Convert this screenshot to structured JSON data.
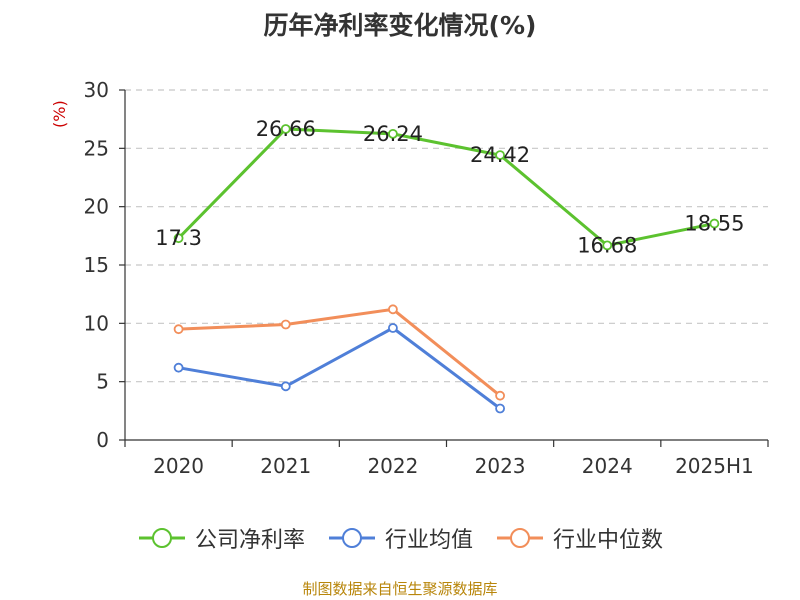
{
  "source": "制图数据来自恒生聚源数据库",
  "chart_data": {
    "type": "line",
    "title": "历年净利率变化情况(%)",
    "ylabel": "(%)",
    "categories": [
      "2020",
      "2021",
      "2022",
      "2023",
      "2024",
      "2025H1"
    ],
    "ylim": [
      0,
      30
    ],
    "yticks": [
      0,
      5,
      10,
      15,
      20,
      25,
      30
    ],
    "grid": true,
    "legend_position": "bottom",
    "series": [
      {
        "name": "公司净利率",
        "color": "#5cc22f",
        "labels": true,
        "values": [
          17.3,
          26.66,
          26.24,
          24.42,
          16.68,
          18.55
        ]
      },
      {
        "name": "行业均值",
        "color": "#4f7fd8",
        "labels": false,
        "values": [
          6.2,
          4.6,
          9.6,
          2.7,
          null,
          null
        ]
      },
      {
        "name": "行业中位数",
        "color": "#f28e5a",
        "labels": false,
        "values": [
          9.5,
          9.9,
          11.2,
          3.8,
          null,
          null
        ]
      }
    ]
  }
}
